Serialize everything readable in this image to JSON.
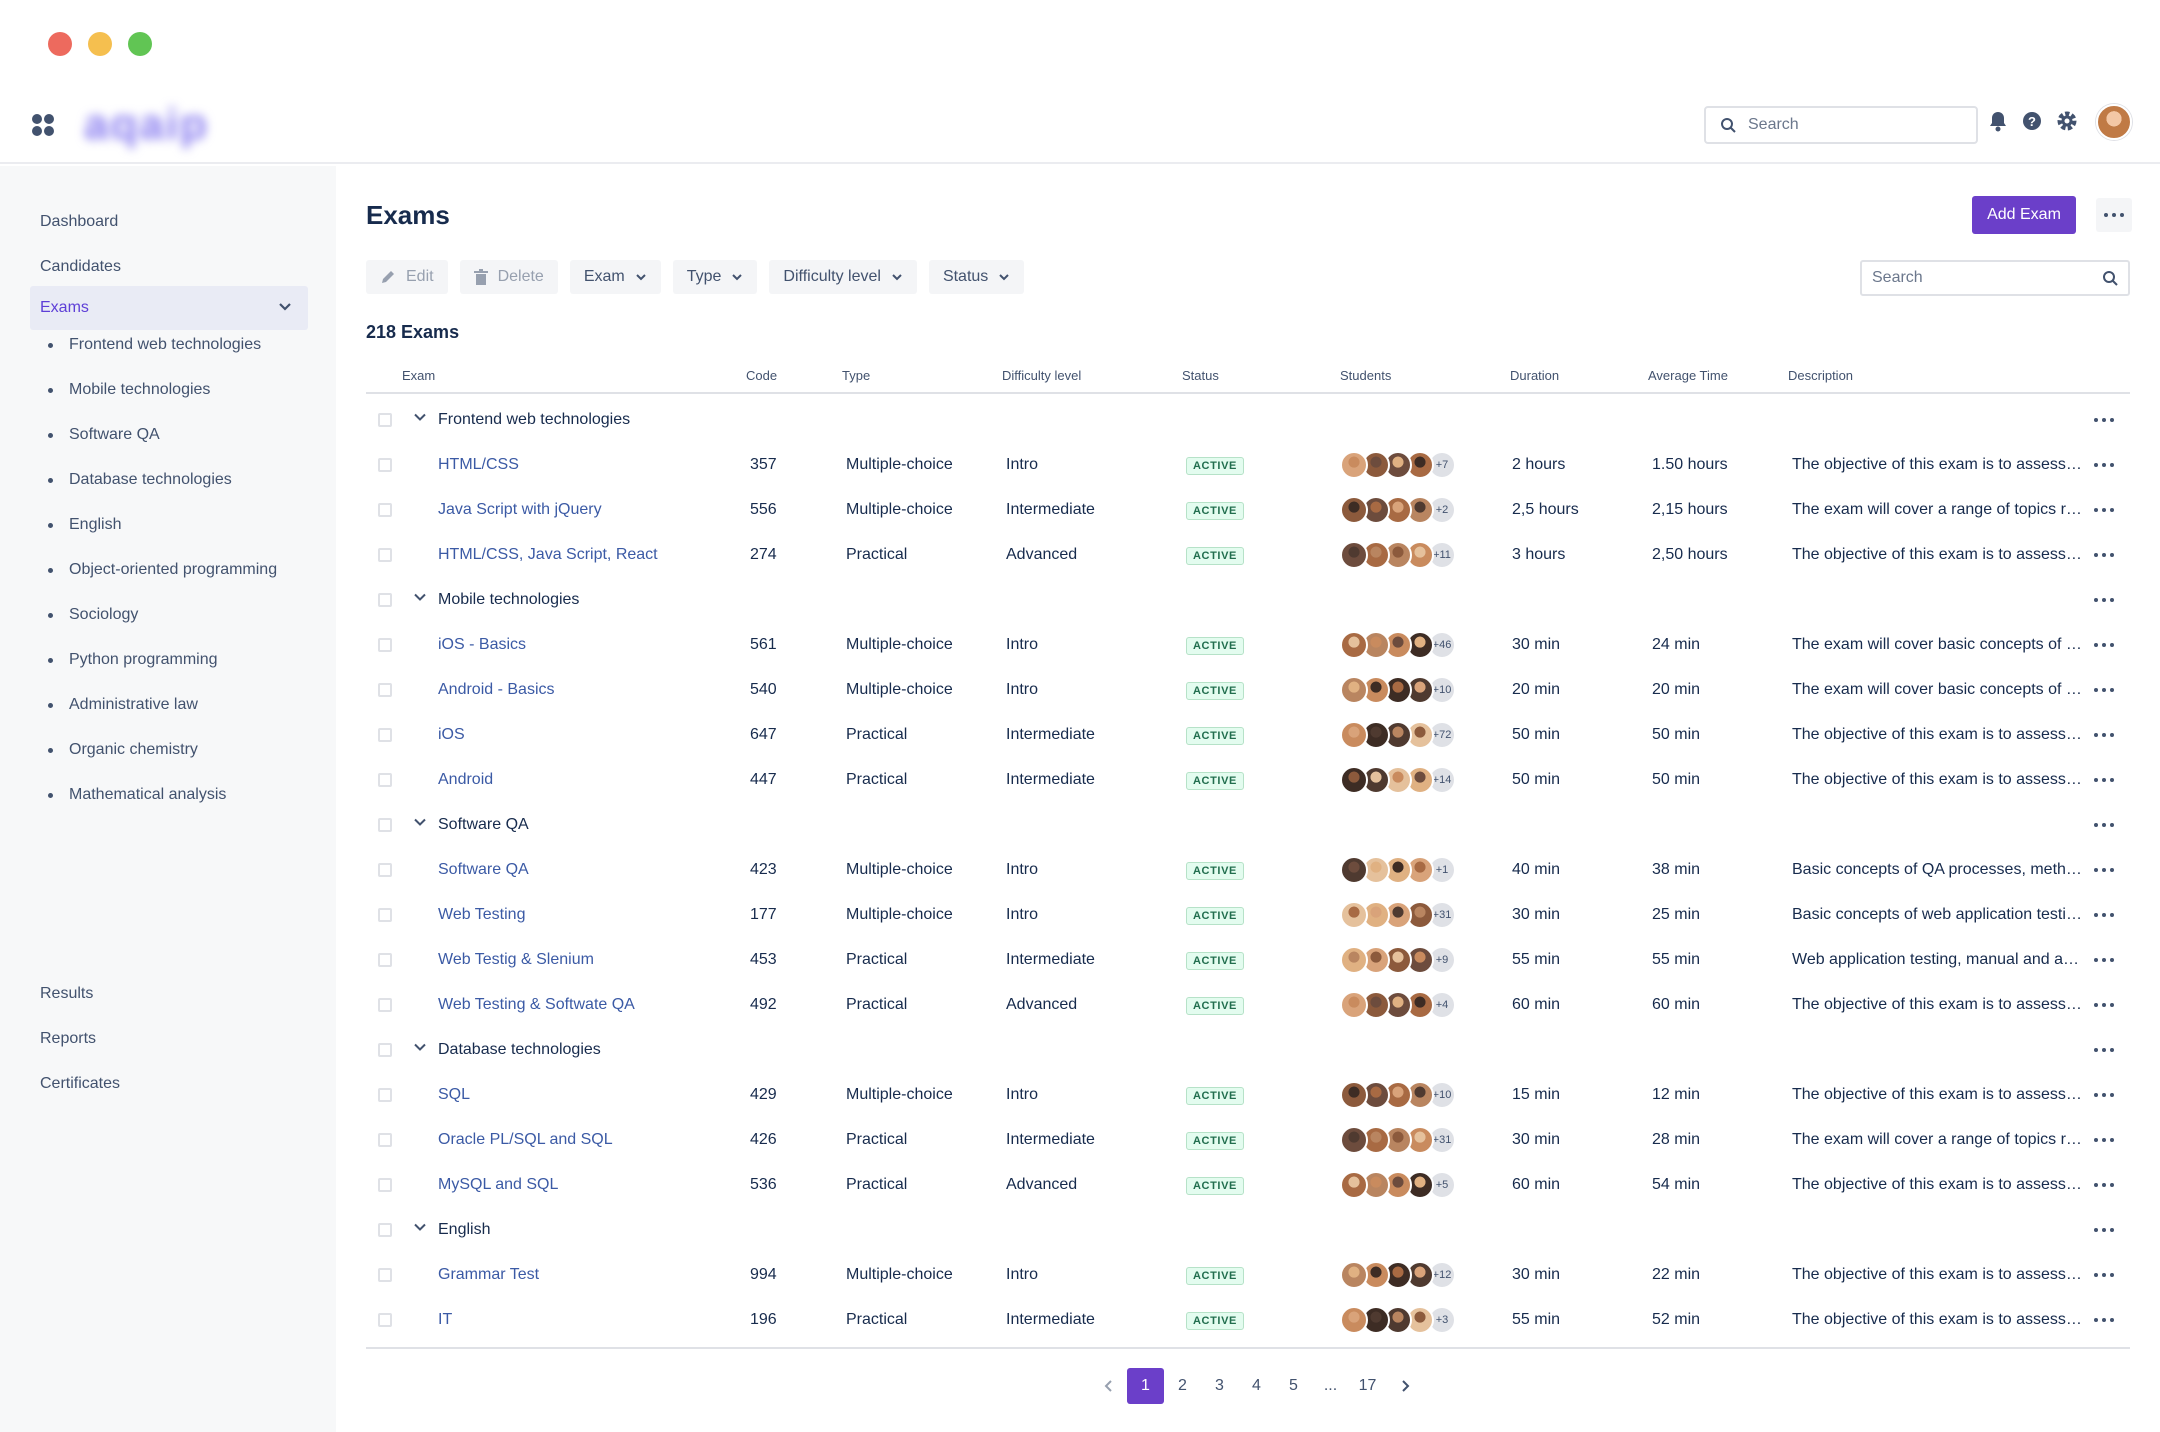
{
  "window": {
    "colors": [
      "#ed6a5e",
      "#f5bf4f",
      "#61c554"
    ]
  },
  "header": {
    "logo_text": "aqaip",
    "search_placeholder": "Search",
    "icons": [
      "apps-icon",
      "bell-icon",
      "help-icon",
      "gear-icon",
      "user-avatar"
    ]
  },
  "sidebar": {
    "items": [
      {
        "label": "Dashboard"
      },
      {
        "label": "Candidates"
      },
      {
        "label": "Exams",
        "active": true
      },
      {
        "label": "Results"
      },
      {
        "label": "Reports"
      },
      {
        "label": "Certificates"
      }
    ],
    "exam_subitems": [
      "Frontend web technologies",
      "Mobile technologies",
      "Software QA",
      "Database technologies",
      "English",
      "Object-oriented programming",
      "Sociology",
      "Python programming",
      "Administrative law",
      "Organic chemistry",
      "Mathematical analysis"
    ]
  },
  "main": {
    "title": "Exams",
    "add_button": "Add Exam",
    "toolbar": {
      "edit": "Edit",
      "delete": "Delete",
      "filters": [
        "Exam",
        "Type",
        "Difficulty level",
        "Status"
      ]
    },
    "search_placeholder": "Search",
    "count_label": "218 Exams",
    "columns": [
      "Exam",
      "Code",
      "Type",
      "Difficulty level",
      "Status",
      "Students",
      "Duration",
      "Average Time",
      "Description"
    ],
    "groups": [
      {
        "name": "Frontend web technologies",
        "rows": [
          {
            "exam": "HTML/CSS",
            "code": "357",
            "type": "Multiple-choice",
            "level": "Intro",
            "status": "ACTIVE",
            "more": "+7",
            "duration": "2 hours",
            "avg": "1.50 hours",
            "desc": "The objective of this exam is to assess the knowledge"
          },
          {
            "exam": "Java Script with jQuery",
            "code": "556",
            "type": "Multiple-choice",
            "level": "Intermediate",
            "status": "ACTIVE",
            "more": "+2",
            "duration": "2,5 hours",
            "avg": "2,15 hours",
            "desc": "The exam will cover a range of topics related"
          },
          {
            "exam": "HTML/CSS, Java Script, React",
            "code": "274",
            "type": "Practical",
            "level": "Advanced",
            "status": "ACTIVE",
            "more": "+11",
            "duration": "3 hours",
            "avg": "2,50 hours",
            "desc": "The objective of this exam is to assess the knowledge"
          }
        ]
      },
      {
        "name": "Mobile technologies",
        "rows": [
          {
            "exam": "iOS - Basics",
            "code": "561",
            "type": "Multiple-choice",
            "level": "Intro",
            "status": "ACTIVE",
            "more": "+46",
            "duration": "30 min",
            "avg": "24 min",
            "desc": "The exam will cover basic concepts of mobile"
          },
          {
            "exam": "Android - Basics",
            "code": "540",
            "type": "Multiple-choice",
            "level": "Intro",
            "status": "ACTIVE",
            "more": "+10",
            "duration": "20 min",
            "avg": "20 min",
            "desc": "The exam will cover basic concepts of mobile"
          },
          {
            "exam": "iOS",
            "code": "647",
            "type": "Practical",
            "level": "Intermediate",
            "status": "ACTIVE",
            "more": "+72",
            "duration": "50 min",
            "avg": "50 min",
            "desc": "The objective of this exam is to assess the knowledge"
          },
          {
            "exam": "Android",
            "code": "447",
            "type": "Practical",
            "level": "Intermediate",
            "status": "ACTIVE",
            "more": "+14",
            "duration": "50 min",
            "avg": "50 min",
            "desc": "The objective of this exam is to assess the knowledge"
          }
        ]
      },
      {
        "name": "Software QA",
        "rows": [
          {
            "exam": "Software QA",
            "code": "423",
            "type": "Multiple-choice",
            "level": "Intro",
            "status": "ACTIVE",
            "more": "+1",
            "duration": "40 min",
            "avg": "38 min",
            "desc": "Basic concepts of QA processes, methods and tools"
          },
          {
            "exam": "Web Testing",
            "code": "177",
            "type": "Multiple-choice",
            "level": "Intro",
            "status": "ACTIVE",
            "more": "+31",
            "duration": "30 min",
            "avg": "25 min",
            "desc": "Basic concepts of web application testing"
          },
          {
            "exam": "Web Testig & Slenium",
            "code": "453",
            "type": "Practical",
            "level": "Intermediate",
            "status": "ACTIVE",
            "more": "+9",
            "duration": "55 min",
            "avg": "55 min",
            "desc": "Web application testing, manual and automated"
          },
          {
            "exam": "Web Testing & Softwate QA",
            "code": "492",
            "type": "Practical",
            "level": "Advanced",
            "status": "ACTIVE",
            "more": "+4",
            "duration": "60 min",
            "avg": "60 min",
            "desc": "The objective of this exam is to assess the knowledge"
          }
        ]
      },
      {
        "name": "Database technologies",
        "rows": [
          {
            "exam": "SQL",
            "code": "429",
            "type": "Multiple-choice",
            "level": "Intro",
            "status": "ACTIVE",
            "more": "+10",
            "duration": "15 min",
            "avg": "12 min",
            "desc": "The objective of this exam is to assess the knowledge"
          },
          {
            "exam": "Oracle PL/SQL and SQL",
            "code": "426",
            "type": "Practical",
            "level": "Intermediate",
            "status": "ACTIVE",
            "more": "+31",
            "duration": "30 min",
            "avg": "28 min",
            "desc": "The exam will cover a range of topics related"
          },
          {
            "exam": "MySQL and SQL",
            "code": "536",
            "type": "Practical",
            "level": "Advanced",
            "status": "ACTIVE",
            "more": "+5",
            "duration": "60 min",
            "avg": "54 min",
            "desc": "The objective of this exam is to assess the knowledge"
          }
        ]
      },
      {
        "name": "English",
        "rows": [
          {
            "exam": "Grammar Test",
            "code": "994",
            "type": "Multiple-choice",
            "level": "Intro",
            "status": "ACTIVE",
            "more": "+12",
            "duration": "30 min",
            "avg": "22 min",
            "desc": "The objective of this exam is to assess the knowledge"
          },
          {
            "exam": "IT",
            "code": "196",
            "type": "Practical",
            "level": "Intermediate",
            "status": "ACTIVE",
            "more": "+3",
            "duration": "55 min",
            "avg": "52 min",
            "desc": "The objective of this exam is to assess the knowledge"
          }
        ]
      }
    ],
    "pagination": {
      "pages": [
        "1",
        "2",
        "3",
        "4",
        "5",
        "...",
        "17"
      ],
      "current": "1"
    }
  },
  "colors": {
    "accent": "#6b3fc9",
    "link": "#3b5aa5",
    "badge_text": "#216e4e",
    "badge_bg": "#e3fcef",
    "sidebar_bg": "#f7f8f9"
  }
}
